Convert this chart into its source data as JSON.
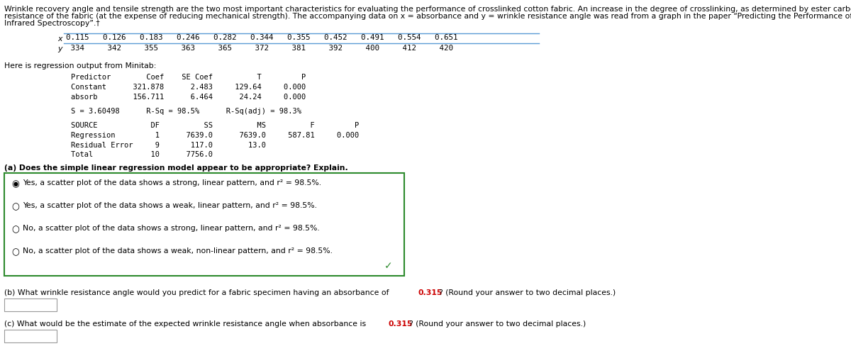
{
  "bg_color": "#ffffff",
  "text_color": "#000000",
  "highlight_color": "#cc0000",
  "green_color": "#2d8a2d",
  "mono_font": "DejaVu Sans Mono",
  "sans_font": "DejaVu Sans",
  "intro_lines": [
    "Wrinkle recovery angle and tensile strength are the two most important characteristics for evaluating the performance of crosslinked cotton fabric. An increase in the degree of crosslinking, as determined by ester carboxyl band absorbance, improves the wrinkle",
    "resistance of the fabric (at the expense of reducing mechanical strength). The accompanying data on x = absorbance and y = wrinkle resistance angle was read from a graph in the paper “Predicting the Performance of Durable Press Finished Cotton Fabric with",
    "Infrared Spectroscopy”.†"
  ],
  "x_label": "x",
  "x_values": "0.115   0.126   0.183   0.246   0.282   0.344   0.355   0.452   0.491   0.554   0.651",
  "y_label": "y",
  "y_values": " 334     342     355     363     365     372     381     392     400     412     420",
  "minitab_header": "Here is regression output from Minitab:",
  "table1_lines": [
    "Predictor        Coef    SE Coef          T         P",
    "Constant      321.878      2.483     129.64     0.000",
    "absorb        156.711      6.464      24.24     0.000"
  ],
  "s_line": "S = 3.60498      R-Sq = 98.5%      R-Sq(adj) = 98.3%",
  "table2_lines": [
    "SOURCE            DF          SS          MS          F         P",
    "Regression         1      7639.0      7639.0     587.81     0.000",
    "Residual Error     9       117.0        13.0",
    "Total             10      7756.0"
  ],
  "part_a_text": "(a) Does the simple linear regression model appear to be appropriate? Explain.",
  "radio_options": [
    {
      "bullet": "◉",
      "text": "Yes, a scatter plot of the data shows a strong, linear pattern, and r² = 98.5%.",
      "selected": true
    },
    {
      "bullet": "○",
      "text": "Yes, a scatter plot of the data shows a weak, linear pattern, and r² = 98.5%.",
      "selected": false
    },
    {
      "bullet": "○",
      "text": "No, a scatter plot of the data shows a strong, linear pattern, and r² = 98.5%.",
      "selected": false
    },
    {
      "bullet": "○",
      "text": "No, a scatter plot of the data shows a weak, non-linear pattern, and r² = 98.5%.",
      "selected": false
    }
  ],
  "part_b_prefix": "(b) What wrinkle resistance angle would you predict for a fabric specimen having an absorbance of ",
  "part_b_highlight": "0.315",
  "part_b_suffix": "? (Round your answer to two decimal places.)",
  "part_c_prefix": "(c) What would be the estimate of the expected wrinkle resistance angle when absorbance is ",
  "part_c_highlight": "0.315",
  "part_c_suffix": "? (Round your answer to two decimal places.)"
}
